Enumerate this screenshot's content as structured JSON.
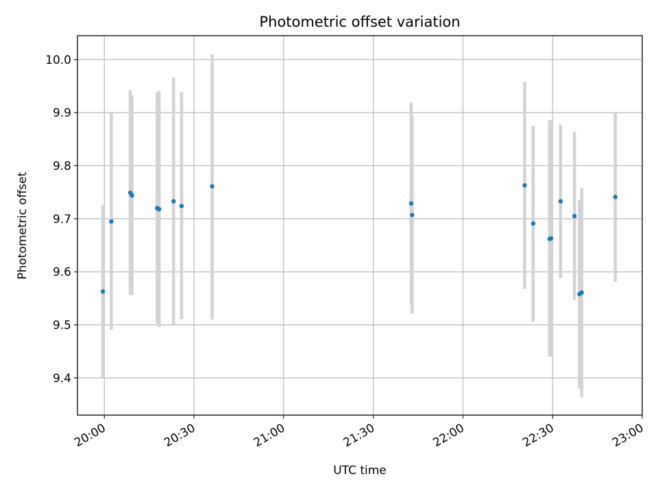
{
  "chart_data": {
    "type": "scatter",
    "title": "Photometric offset variation",
    "xlabel": "UTC time",
    "ylabel": "Photometric offset",
    "x_axis": {
      "unit": "UTC time (HH:MM)",
      "range": [
        "19:51",
        "23:00"
      ],
      "ticks": [
        {
          "value": "20:00",
          "label": "20:00"
        },
        {
          "value": "20:30",
          "label": "20:30"
        },
        {
          "value": "21:00",
          "label": "21:00"
        },
        {
          "value": "21:30",
          "label": "21:30"
        },
        {
          "value": "22:00",
          "label": "22:00"
        },
        {
          "value": "22:30",
          "label": "22:30"
        },
        {
          "value": "23:00",
          "label": "23:00"
        }
      ],
      "tick_label_rotation_deg": 30
    },
    "y_axis": {
      "range": [
        9.33,
        10.045
      ],
      "ticks": [
        {
          "value": 9.4,
          "label": "9.4"
        },
        {
          "value": 9.5,
          "label": "9.5"
        },
        {
          "value": 9.6,
          "label": "9.6"
        },
        {
          "value": 9.7,
          "label": "9.7"
        },
        {
          "value": 9.8,
          "label": "9.8"
        },
        {
          "value": 9.9,
          "label": "9.9"
        },
        {
          "value": 10.0,
          "label": "10.0"
        }
      ]
    },
    "grid": true,
    "legend": "none",
    "marker_color": "#1f77b4",
    "errorbar_color": "#d3d3d3",
    "points": [
      {
        "time": "19:59:30",
        "y": 9.563,
        "low": 9.4,
        "high": 9.726
      },
      {
        "time": "20:02:20",
        "y": 9.695,
        "low": 9.491,
        "high": 9.899
      },
      {
        "time": "20:08:40",
        "y": 9.749,
        "low": 9.556,
        "high": 9.942
      },
      {
        "time": "20:09:15",
        "y": 9.744,
        "low": 9.556,
        "high": 9.932
      },
      {
        "time": "20:17:40",
        "y": 9.72,
        "low": 9.503,
        "high": 9.938
      },
      {
        "time": "20:18:20",
        "y": 9.718,
        "low": 9.496,
        "high": 9.941
      },
      {
        "time": "20:23:10",
        "y": 9.733,
        "low": 9.5,
        "high": 9.966
      },
      {
        "time": "20:25:50",
        "y": 9.724,
        "low": 9.511,
        "high": 9.939
      },
      {
        "time": "20:36:05",
        "y": 9.761,
        "low": 9.51,
        "high": 10.01
      },
      {
        "time": "21:42:40",
        "y": 9.729,
        "low": 9.538,
        "high": 9.919
      },
      {
        "time": "21:43:00",
        "y": 9.707,
        "low": 9.521,
        "high": 9.893
      },
      {
        "time": "22:20:40",
        "y": 9.763,
        "low": 9.568,
        "high": 9.958
      },
      {
        "time": "22:23:30",
        "y": 9.691,
        "low": 9.506,
        "high": 9.875
      },
      {
        "time": "22:29:00",
        "y": 9.662,
        "low": 9.44,
        "high": 9.886
      },
      {
        "time": "22:29:30",
        "y": 9.663,
        "low": 9.44,
        "high": 9.886
      },
      {
        "time": "22:32:40",
        "y": 9.733,
        "low": 9.588,
        "high": 9.877
      },
      {
        "time": "22:37:20",
        "y": 9.705,
        "low": 9.547,
        "high": 9.864
      },
      {
        "time": "22:39:00",
        "y": 9.558,
        "low": 9.38,
        "high": 9.736
      },
      {
        "time": "22:39:45",
        "y": 9.561,
        "low": 9.364,
        "high": 9.758
      },
      {
        "time": "22:51:00",
        "y": 9.741,
        "low": 9.581,
        "high": 9.9
      }
    ]
  }
}
